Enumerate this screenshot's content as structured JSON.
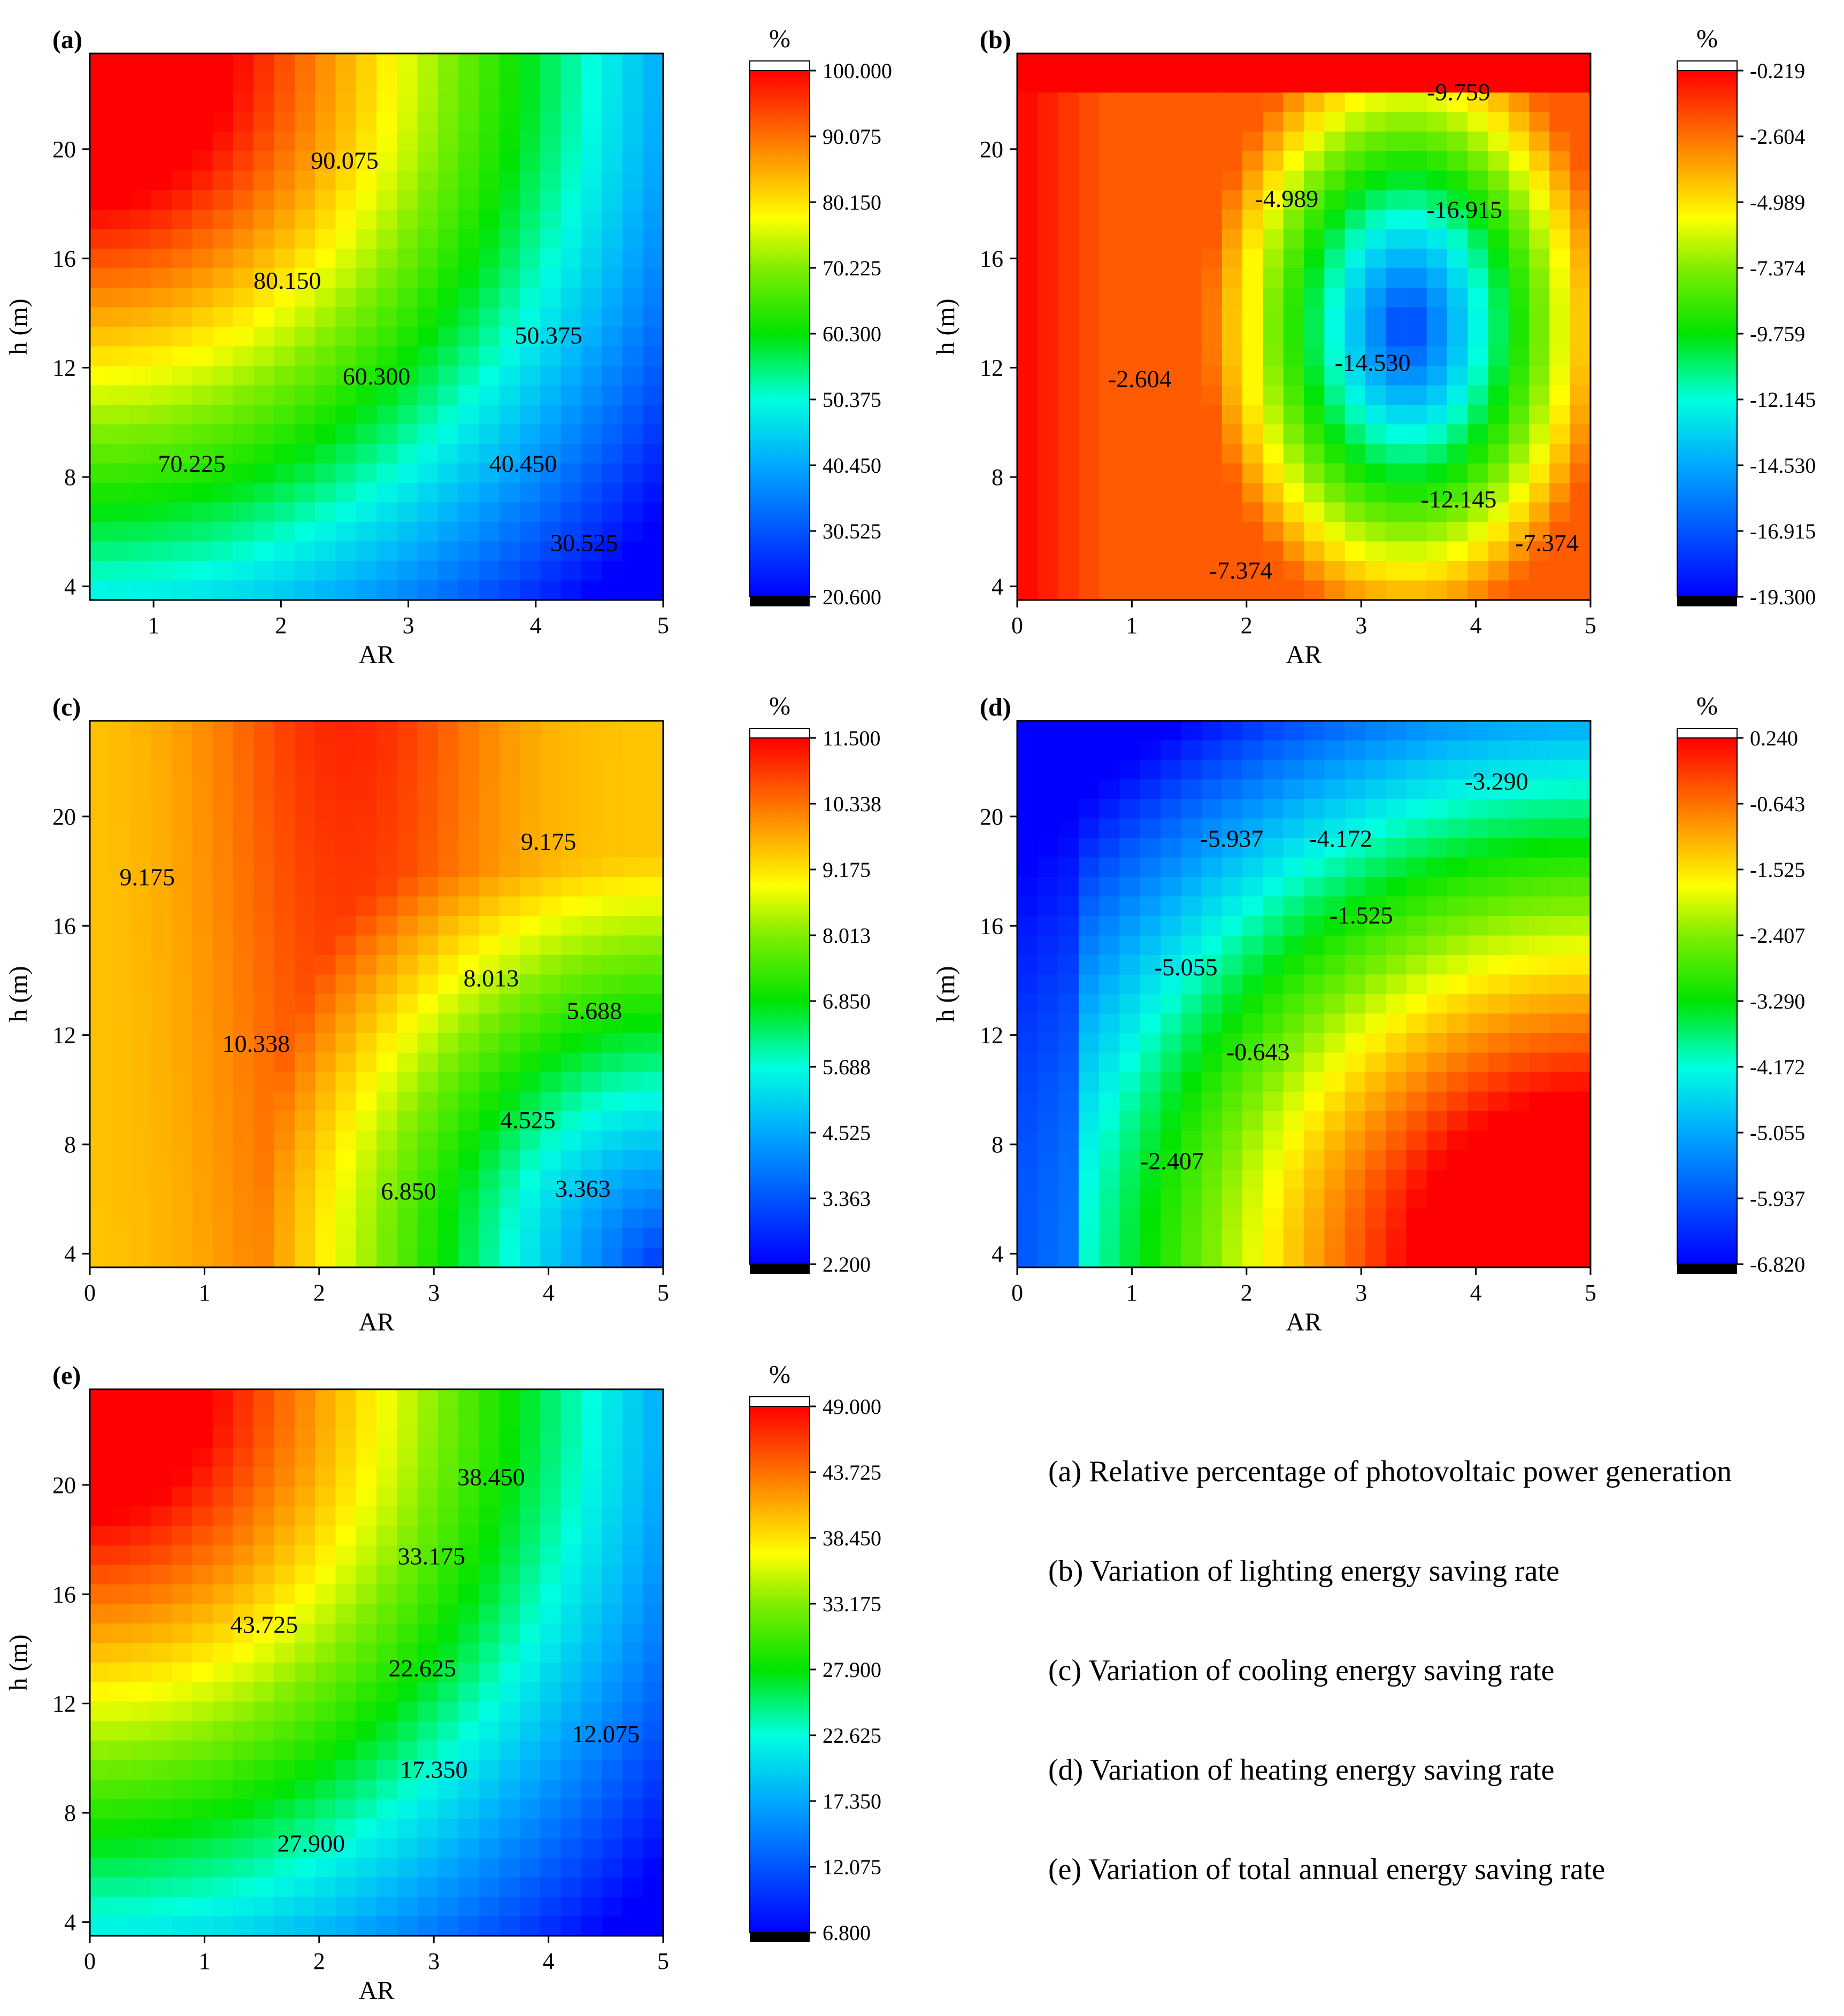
{
  "chart_data": [
    {
      "id": "a",
      "panel_label": "(a)",
      "type": "contour",
      "xlabel": "AR",
      "ylabel": "h (m)",
      "xlim": [
        0.5,
        5
      ],
      "ylim": [
        3.5,
        23.5
      ],
      "xticks": [
        "1",
        "2",
        "3",
        "4",
        "5"
      ],
      "yticks": [
        "4",
        "8",
        "12",
        "16",
        "20"
      ],
      "colorbar_unit": "%",
      "colorbar_ticks": [
        "100.000",
        "90.075",
        "80.150",
        "70.225",
        "60.300",
        "50.375",
        "40.450",
        "30.525",
        "20.600"
      ],
      "range": [
        20.6,
        100.0
      ],
      "contour_labels": [
        {
          "text": "90.075",
          "ar": 2.5,
          "h": 19.6
        },
        {
          "text": "80.150",
          "ar": 2.05,
          "h": 15.2
        },
        {
          "text": "60.300",
          "ar": 2.75,
          "h": 11.7
        },
        {
          "text": "50.375",
          "ar": 4.1,
          "h": 13.2
        },
        {
          "text": "70.225",
          "ar": 1.3,
          "h": 8.5
        },
        {
          "text": "40.450",
          "ar": 3.9,
          "h": 8.5
        },
        {
          "text": "30.525",
          "ar": 4.38,
          "h": 5.6
        }
      ]
    },
    {
      "id": "b",
      "panel_label": "(b)",
      "type": "contour",
      "xlabel": "AR",
      "ylabel": "h (m)",
      "xlim": [
        0,
        5
      ],
      "ylim": [
        3.5,
        23.5
      ],
      "xticks": [
        "0",
        "1",
        "2",
        "3",
        "4",
        "5"
      ],
      "yticks": [
        "4",
        "8",
        "12",
        "16",
        "20"
      ],
      "colorbar_unit": "%",
      "colorbar_ticks": [
        "-0.219",
        "-2.604",
        "-4.989",
        "-7.374",
        "-9.759",
        "-12.145",
        "-14.530",
        "-16.915",
        "-19.300"
      ],
      "range": [
        -19.3,
        -0.219
      ],
      "contour_labels": [
        {
          "text": "-9.759",
          "ar": 3.85,
          "h": 22.1
        },
        {
          "text": "-4.989",
          "ar": 2.35,
          "h": 18.2
        },
        {
          "text": "-16.915",
          "ar": 3.9,
          "h": 17.8
        },
        {
          "text": "-2.604",
          "ar": 1.07,
          "h": 11.6
        },
        {
          "text": "-14.530",
          "ar": 3.1,
          "h": 12.2
        },
        {
          "text": "-12.145",
          "ar": 3.85,
          "h": 7.2
        },
        {
          "text": "-7.374",
          "ar": 1.95,
          "h": 4.6
        },
        {
          "text": "-7.374",
          "ar": 4.62,
          "h": 5.6
        }
      ]
    },
    {
      "id": "c",
      "panel_label": "(c)",
      "type": "contour",
      "xlabel": "AR",
      "ylabel": "h (m)",
      "xlim": [
        0,
        5
      ],
      "ylim": [
        3.5,
        23.5
      ],
      "xticks": [
        "0",
        "1",
        "2",
        "3",
        "4",
        "5"
      ],
      "yticks": [
        "4",
        "8",
        "12",
        "16",
        "20"
      ],
      "colorbar_unit": "%",
      "colorbar_ticks": [
        "11.500",
        "10.338",
        "9.175",
        "8.013",
        "6.850",
        "5.688",
        "4.525",
        "3.363",
        "2.200"
      ],
      "range": [
        2.2,
        11.5
      ],
      "contour_labels": [
        {
          "text": "9.175",
          "ar": 0.5,
          "h": 17.8
        },
        {
          "text": "9.175",
          "ar": 4.0,
          "h": 19.1
        },
        {
          "text": "10.338",
          "ar": 1.45,
          "h": 11.7
        },
        {
          "text": "8.013",
          "ar": 3.5,
          "h": 14.1
        },
        {
          "text": "5.688",
          "ar": 4.4,
          "h": 12.9
        },
        {
          "text": "4.525",
          "ar": 3.82,
          "h": 8.9
        },
        {
          "text": "6.850",
          "ar": 2.78,
          "h": 6.3
        },
        {
          "text": "3.363",
          "ar": 4.3,
          "h": 6.4
        }
      ]
    },
    {
      "id": "d",
      "panel_label": "(d)",
      "type": "contour",
      "xlabel": "AR",
      "ylabel": "h (m)",
      "xlim": [
        0,
        5
      ],
      "ylim": [
        3.5,
        23.5
      ],
      "xticks": [
        "0",
        "1",
        "2",
        "3",
        "4",
        "5"
      ],
      "yticks": [
        "4",
        "8",
        "12",
        "16",
        "20"
      ],
      "colorbar_unit": "%",
      "colorbar_ticks": [
        "0.240",
        "-0.643",
        "-1.525",
        "-2.407",
        "-3.290",
        "-4.172",
        "-5.055",
        "-5.937",
        "-6.820"
      ],
      "range": [
        -6.82,
        0.24
      ],
      "contour_labels": [
        {
          "text": "-3.290",
          "ar": 4.18,
          "h": 21.3
        },
        {
          "text": "-5.937",
          "ar": 1.87,
          "h": 19.2
        },
        {
          "text": "-4.172",
          "ar": 2.82,
          "h": 19.2
        },
        {
          "text": "-1.525",
          "ar": 3.0,
          "h": 16.4
        },
        {
          "text": "-5.055",
          "ar": 1.47,
          "h": 14.5
        },
        {
          "text": "-0.643",
          "ar": 2.1,
          "h": 11.4
        },
        {
          "text": "-2.407",
          "ar": 1.35,
          "h": 7.4
        }
      ]
    },
    {
      "id": "e",
      "panel_label": "(e)",
      "type": "contour",
      "xlabel": "AR",
      "ylabel": "h (m)",
      "xlim": [
        0,
        5
      ],
      "ylim": [
        3.5,
        23.5
      ],
      "xticks": [
        "0",
        "1",
        "2",
        "3",
        "4",
        "5"
      ],
      "yticks": [
        "4",
        "8",
        "12",
        "16",
        "20"
      ],
      "colorbar_unit": "%",
      "colorbar_ticks": [
        "49.000",
        "43.725",
        "38.450",
        "33.175",
        "27.900",
        "22.625",
        "17.350",
        "12.075",
        "6.800"
      ],
      "range": [
        6.8,
        49.0
      ],
      "contour_labels": [
        {
          "text": "38.450",
          "ar": 3.5,
          "h": 20.3
        },
        {
          "text": "33.175",
          "ar": 2.98,
          "h": 17.4
        },
        {
          "text": "43.725",
          "ar": 1.52,
          "h": 14.9
        },
        {
          "text": "22.625",
          "ar": 2.9,
          "h": 13.3
        },
        {
          "text": "12.075",
          "ar": 4.5,
          "h": 10.9
        },
        {
          "text": "17.350",
          "ar": 3.0,
          "h": 9.6
        },
        {
          "text": "27.900",
          "ar": 1.93,
          "h": 6.9
        }
      ]
    }
  ],
  "legend": {
    "items": [
      "(a) Relative percentage of photovoltaic power generation",
      "(b) Variation of lighting energy saving rate",
      "(c) Variation of cooling energy saving rate",
      "(d) Variation of heating energy saving rate",
      "(e) Variation of total annual energy saving rate"
    ]
  }
}
